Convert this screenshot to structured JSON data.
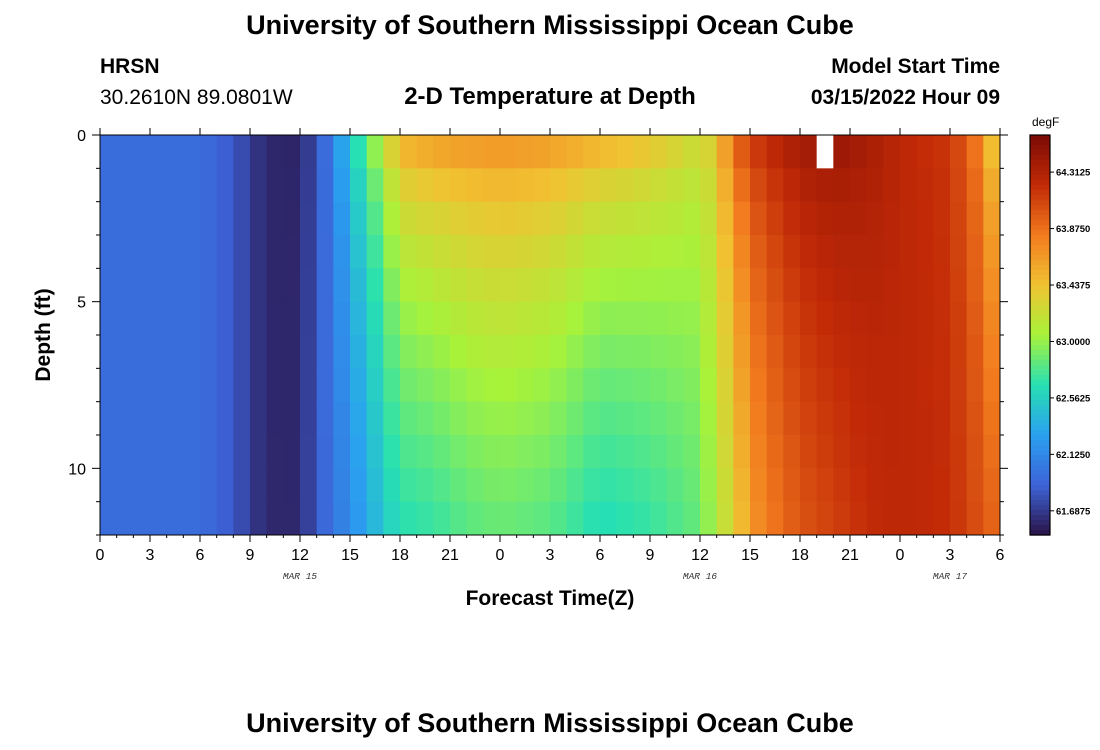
{
  "header": {
    "title": "University of Southern Mississippi Ocean Cube",
    "station": "HRSN",
    "coords": "30.2610N  89.0801W",
    "subtitle": "2-D Temperature at Depth",
    "model_start_label": "Model Start Time",
    "model_start_time": "03/15/2022 Hour 09"
  },
  "footer": {
    "title": "University of Southern Mississippi Ocean Cube"
  },
  "colors": {
    "scale": [
      "#2a1348",
      "#3d63d8",
      "#2aa0f0",
      "#27e0b3",
      "#a8f23a",
      "#f1c232",
      "#f27a1e",
      "#c22a07",
      "#7a0a04"
    ]
  },
  "chart_data": {
    "type": "heatmap",
    "xlabel": "Forecast Time(Z)",
    "ylabel": "Depth (ft)",
    "x_ticks": [
      "0",
      "3",
      "6",
      "9",
      "12",
      "15",
      "18",
      "21",
      "0",
      "3",
      "6",
      "9",
      "12",
      "15",
      "18",
      "21",
      "0",
      "3",
      "6"
    ],
    "x_range_hours": [
      0,
      54
    ],
    "date_labels": [
      {
        "label": "MAR 15",
        "hour": 12
      },
      {
        "label": "MAR 16",
        "hour": 36
      },
      {
        "label": "MAR 17",
        "hour": 51
      }
    ],
    "y_ticks": [
      "0",
      "5",
      "10"
    ],
    "y_range_ft": [
      0,
      12
    ],
    "colorbar": {
      "unit": "degF",
      "min": 61.5,
      "max": 64.6,
      "labels": [
        "64.3125",
        "63.8750",
        "63.4375",
        "63.0000",
        "62.5625",
        "62.1250",
        "61.6875"
      ]
    },
    "hour_step": 1,
    "depth_step_ft": 1,
    "profile": [
      {
        "hour": 0,
        "surface": 61.95,
        "bottom": 61.95
      },
      {
        "hour": 6,
        "surface": 61.95,
        "bottom": 61.95
      },
      {
        "hour": 8,
        "surface": 61.85,
        "bottom": 61.85
      },
      {
        "hour": 9,
        "surface": 61.7,
        "bottom": 61.7
      },
      {
        "hour": 10,
        "surface": 61.6,
        "bottom": 61.6
      },
      {
        "hour": 12,
        "surface": 61.58,
        "bottom": 61.6
      },
      {
        "hour": 13,
        "surface": 61.8,
        "bottom": 61.85
      },
      {
        "hour": 14,
        "surface": 62.1,
        "bottom": 62.0
      },
      {
        "hour": 15,
        "surface": 62.6,
        "bottom": 62.15
      },
      {
        "hour": 16,
        "surface": 62.95,
        "bottom": 62.3
      },
      {
        "hour": 17,
        "surface": 63.3,
        "bottom": 62.5
      },
      {
        "hour": 18,
        "surface": 63.7,
        "bottom": 62.65
      },
      {
        "hour": 20,
        "surface": 63.8,
        "bottom": 62.7
      },
      {
        "hour": 22,
        "surface": 63.82,
        "bottom": 62.8
      },
      {
        "hour": 24,
        "surface": 63.85,
        "bottom": 62.85
      },
      {
        "hour": 27,
        "surface": 63.8,
        "bottom": 62.8
      },
      {
        "hour": 30,
        "surface": 63.7,
        "bottom": 62.62
      },
      {
        "hour": 33,
        "surface": 63.55,
        "bottom": 62.7
      },
      {
        "hour": 36,
        "surface": 63.3,
        "bottom": 62.85
      },
      {
        "hour": 37,
        "surface": 63.45,
        "bottom": 63.1
      },
      {
        "hour": 38,
        "surface": 64.0,
        "bottom": 63.3
      },
      {
        "hour": 39,
        "surface": 64.2,
        "bottom": 63.65
      },
      {
        "hour": 40,
        "surface": 64.3,
        "bottom": 63.8
      },
      {
        "hour": 42,
        "surface": 64.45,
        "bottom": 64.0
      },
      {
        "hour": 44,
        "surface": 64.5,
        "bottom": 64.1
      },
      {
        "hour": 46,
        "surface": 64.4,
        "bottom": 64.2
      },
      {
        "hour": 48,
        "surface": 64.25,
        "bottom": 64.25
      },
      {
        "hour": 51,
        "surface": 64.15,
        "bottom": 64.2
      },
      {
        "hour": 53,
        "surface": 63.7,
        "bottom": 64.0
      },
      {
        "hour": 54,
        "surface": 63.0,
        "bottom": 63.9
      }
    ],
    "missing_cells": [
      {
        "hour": 43,
        "depth_ft": 0
      }
    ]
  }
}
